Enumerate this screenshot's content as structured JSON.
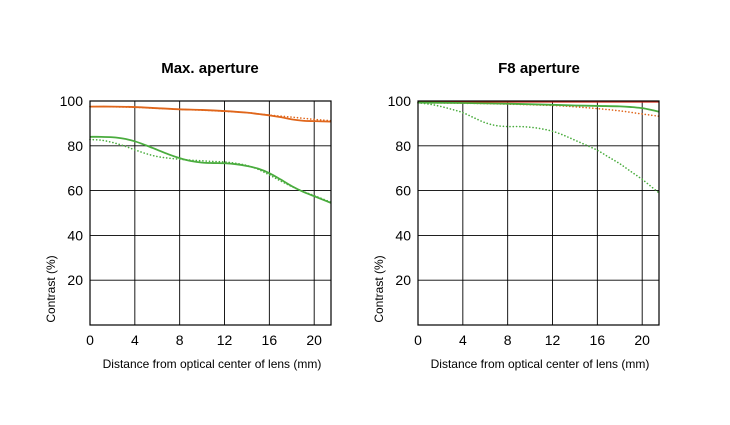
{
  "chart_data": [
    {
      "type": "line",
      "title": "Max. aperture",
      "xlabel": "Distance from optical center of lens (mm)",
      "ylabel": "Contrast (%)",
      "xlim": [
        0,
        21.5
      ],
      "ylim": [
        0,
        100
      ],
      "xticks": [
        "0",
        "4",
        "8",
        "12",
        "16",
        "20"
      ],
      "yticks": [
        "20",
        "40",
        "60",
        "80",
        "100"
      ],
      "grid": true,
      "series": [
        {
          "color": "#e0661b",
          "style": "solid",
          "x": [
            0,
            2,
            4,
            6,
            8,
            10,
            12,
            14,
            15,
            16,
            17,
            18,
            19,
            20,
            21.5
          ],
          "y": [
            97.5,
            97.5,
            97.3,
            96.8,
            96.3,
            96,
            95.5,
            94.8,
            94.2,
            93.6,
            92.8,
            91.8,
            91.2,
            91,
            90.8
          ]
        },
        {
          "color": "#e0661b",
          "style": "dotted",
          "x": [
            0,
            2,
            4,
            6,
            8,
            10,
            12,
            14,
            16,
            18,
            20,
            21.5
          ],
          "y": [
            97.5,
            97.4,
            97.2,
            96.7,
            96.3,
            95.9,
            95.4,
            94.8,
            93.7,
            92.8,
            91.8,
            91.2
          ]
        },
        {
          "color": "#4aac3e",
          "style": "solid",
          "x": [
            0,
            1,
            2,
            3,
            4,
            5,
            6,
            7,
            8,
            9,
            10,
            11,
            12,
            13,
            14,
            15,
            16,
            17,
            18,
            19,
            20,
            21,
            21.5
          ],
          "y": [
            84,
            84,
            83.8,
            83.2,
            82,
            80.2,
            78.2,
            76.2,
            74.5,
            73.2,
            72.5,
            72.3,
            72.2,
            71.8,
            71,
            69.8,
            67.8,
            65,
            62,
            59.5,
            57.5,
            55.5,
            54.5
          ]
        },
        {
          "color": "#4aac3e",
          "style": "dotted",
          "x": [
            0,
            1,
            2,
            3,
            4,
            5,
            6,
            7,
            8,
            9,
            10,
            11,
            12,
            13,
            14,
            15,
            16,
            17,
            18,
            19,
            20,
            21,
            21.5
          ],
          "y": [
            82.8,
            82.5,
            81.5,
            80,
            78.2,
            76.5,
            75.2,
            74.5,
            74,
            73.6,
            73.3,
            73,
            72.8,
            72.2,
            71.2,
            69.5,
            67,
            64.3,
            61.8,
            59.6,
            57.8,
            55.8,
            54.8
          ]
        }
      ]
    },
    {
      "type": "line",
      "title": "F8 aperture",
      "xlabel": "Distance from optical center of lens (mm)",
      "ylabel": "Contrast (%)",
      "xlim": [
        0,
        21.5
      ],
      "ylim": [
        0,
        100
      ],
      "xticks": [
        "0",
        "4",
        "8",
        "12",
        "16",
        "20"
      ],
      "yticks": [
        "20",
        "40",
        "60",
        "80",
        "100"
      ],
      "grid": true,
      "series": [
        {
          "color": "#d42b1e",
          "style": "solid",
          "x": [
            0,
            4,
            8,
            12,
            16,
            20,
            21.5
          ],
          "y": [
            99.7,
            99.7,
            99.7,
            99.7,
            99.7,
            99.7,
            99.7
          ]
        },
        {
          "color": "#e0661b",
          "style": "dotted",
          "x": [
            0,
            4,
            8,
            12,
            14,
            16,
            18,
            20,
            21.5
          ],
          "y": [
            99.2,
            99,
            98.6,
            98,
            97.4,
            96.6,
            95.6,
            94.2,
            93.2
          ]
        },
        {
          "color": "#4aac3e",
          "style": "solid",
          "x": [
            0,
            4,
            8,
            12,
            14,
            16,
            18,
            19,
            20,
            21,
            21.5
          ],
          "y": [
            99.3,
            99.1,
            98.8,
            98.3,
            98,
            97.8,
            97.6,
            97.3,
            96.8,
            95.8,
            95.2
          ]
        },
        {
          "color": "#4aac3e",
          "style": "dotted",
          "x": [
            0,
            1,
            2,
            3,
            4,
            5,
            6,
            7,
            8,
            9,
            10,
            11,
            12,
            13,
            14,
            15,
            16,
            17,
            18,
            19,
            20,
            21,
            21.5
          ],
          "y": [
            99.2,
            98.6,
            97.6,
            96.3,
            94.8,
            92.5,
            90.3,
            89,
            88.6,
            88.6,
            88.3,
            87.6,
            86.5,
            84.7,
            82.5,
            80.3,
            78,
            75,
            72,
            68.5,
            65,
            61,
            59
          ]
        }
      ]
    }
  ]
}
